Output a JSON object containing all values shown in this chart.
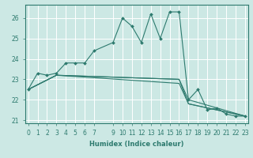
{
  "xlabel": "Humidex (Indice chaleur)",
  "ylabel": "",
  "bg_color": "#cce8e4",
  "line_color": "#2d7a6e",
  "grid_color": "#ffffff",
  "lines": [
    {
      "x": [
        0,
        1,
        2,
        3,
        4,
        5,
        6,
        7,
        9,
        10,
        11,
        12,
        13,
        14,
        15,
        16,
        17,
        18,
        19,
        20,
        21,
        22,
        23
      ],
      "y": [
        22.5,
        23.3,
        23.2,
        23.3,
        23.8,
        23.8,
        23.8,
        24.4,
        24.8,
        26.0,
        25.6,
        24.8,
        26.2,
        25.0,
        26.3,
        26.3,
        22.0,
        22.5,
        21.5,
        21.6,
        21.3,
        21.2,
        21.2
      ]
    },
    {
      "x": [
        0,
        3,
        16,
        17,
        23
      ],
      "y": [
        22.5,
        23.2,
        23.0,
        22.0,
        21.2
      ]
    },
    {
      "x": [
        0,
        3,
        16,
        17,
        23
      ],
      "y": [
        22.5,
        23.2,
        23.0,
        21.8,
        21.2
      ]
    },
    {
      "x": [
        0,
        3,
        16,
        17,
        23
      ],
      "y": [
        22.5,
        23.2,
        22.8,
        21.8,
        21.2
      ]
    }
  ],
  "xlim": [
    -0.3,
    23.3
  ],
  "ylim": [
    20.85,
    26.65
  ],
  "yticks": [
    21,
    22,
    23,
    24,
    25,
    26
  ],
  "xticks": [
    0,
    1,
    2,
    3,
    4,
    5,
    6,
    7,
    9,
    10,
    11,
    12,
    13,
    14,
    15,
    16,
    17,
    18,
    19,
    20,
    21,
    22,
    23
  ],
  "xlabel_fontsize": 6.0,
  "tick_fontsize": 5.5
}
